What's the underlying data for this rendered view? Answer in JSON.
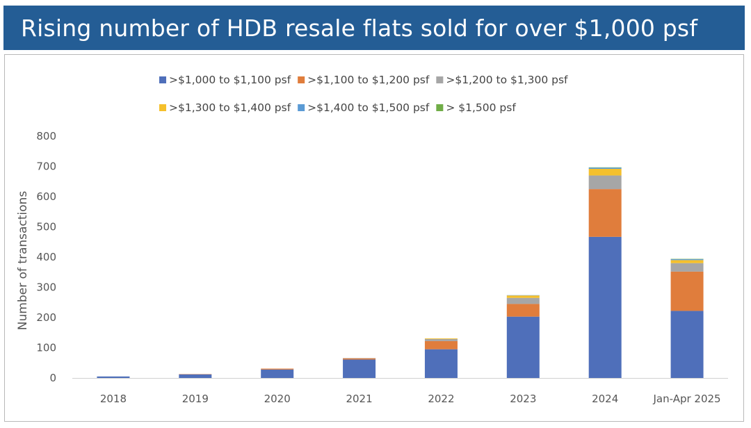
{
  "header": {
    "title": "Rising number of HDB resale flats sold for over $1,000 psf"
  },
  "chart_data": {
    "type": "bar",
    "stacked": true,
    "title": "Rising number of HDB resale flats sold for over $1,000 psf",
    "xlabel": "",
    "ylabel": "Number of transactions",
    "ylim": [
      0,
      800
    ],
    "yticks": [
      0,
      100,
      200,
      300,
      400,
      500,
      600,
      700,
      800
    ],
    "grid": false,
    "legend_position": "top",
    "categories": [
      "2018",
      "2019",
      "2020",
      "2021",
      "2022",
      "2023",
      "2024",
      "Jan-Apr 2025"
    ],
    "series": [
      {
        "name": ">$1,000 to $1,100 psf",
        "color": "#4f6fba",
        "values": [
          5,
          12,
          28,
          61,
          95,
          203,
          467,
          222
        ]
      },
      {
        "name": ">$1,100 to $1,200 psf",
        "color": "#e07d3c",
        "values": [
          0,
          1,
          3,
          4,
          27,
          42,
          158,
          130
        ]
      },
      {
        "name": ">$1,200 to $1,300 psf",
        "color": "#a6a6a6",
        "values": [
          0,
          0,
          0,
          1,
          7,
          20,
          45,
          28
        ]
      },
      {
        "name": ">$1,300 to $1,400 psf",
        "color": "#f5c02c",
        "values": [
          0,
          0,
          0,
          0,
          2,
          8,
          22,
          10
        ]
      },
      {
        "name": ">$1,400 to $1,500 psf",
        "color": "#5b9bd5",
        "values": [
          0,
          0,
          0,
          0,
          0,
          1,
          4,
          3
        ]
      },
      {
        "name": "> $1,500 psf",
        "color": "#70ad47",
        "values": [
          0,
          0,
          0,
          0,
          0,
          0,
          1,
          1
        ]
      }
    ]
  }
}
